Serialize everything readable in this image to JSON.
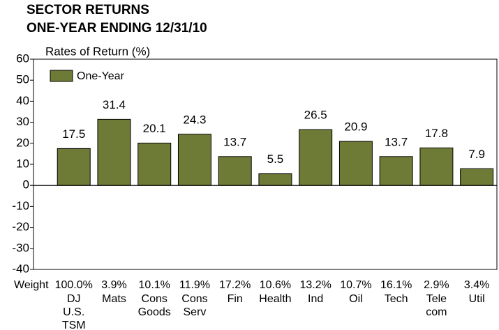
{
  "chart_data": {
    "type": "bar",
    "title": [
      "SECTOR RETURNS",
      "ONE-YEAR ENDING 12/31/10"
    ],
    "y_label": "Rates of Return (%)",
    "weight_label": "Weight",
    "weights": [
      "100.0%",
      "3.9%",
      "10.1%",
      "11.9%",
      "17.2%",
      "10.6%",
      "13.2%",
      "10.7%",
      "16.1%",
      "2.9%",
      "3.4%"
    ],
    "categories": [
      [
        "DJ",
        "U.S.",
        "TSM"
      ],
      [
        "Mats"
      ],
      [
        "Cons",
        "Goods"
      ],
      [
        "Cons",
        "Serv"
      ],
      [
        "Fin"
      ],
      [
        "Health"
      ],
      [
        "Ind"
      ],
      [
        "Oil"
      ],
      [
        "Tech"
      ],
      [
        "Tele",
        "com"
      ],
      [
        "Util"
      ]
    ],
    "series": [
      {
        "name": "One-Year",
        "color": "#6e7b36",
        "values": [
          17.5,
          31.4,
          20.1,
          24.3,
          13.7,
          5.5,
          26.5,
          20.9,
          13.7,
          17.8,
          7.9
        ]
      }
    ],
    "ylim": [
      -40,
      60
    ],
    "yticks": [
      -40,
      -30,
      -20,
      -10,
      0,
      10,
      20,
      30,
      40,
      50,
      60
    ],
    "legend": "upper left"
  }
}
